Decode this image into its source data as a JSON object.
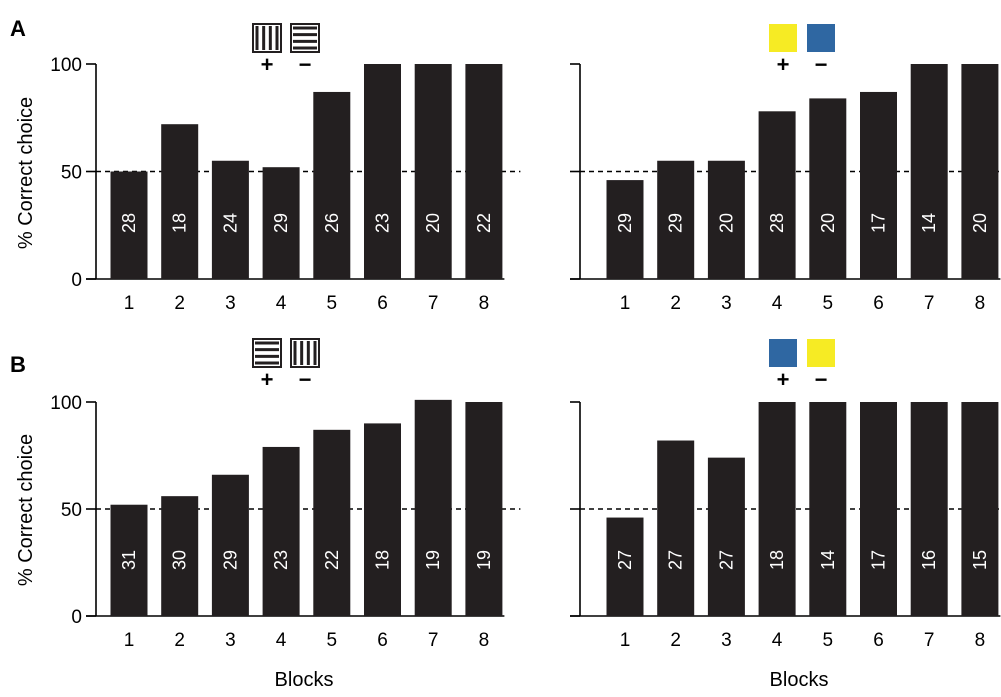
{
  "figure": {
    "panel_labels": [
      "A",
      "B"
    ],
    "x_label": "Blocks",
    "y_label": "% Correct choice"
  },
  "chart_data": [
    {
      "type": "bar",
      "row": "A",
      "categories": [
        "1",
        "2",
        "3",
        "4",
        "5",
        "6",
        "7",
        "8"
      ],
      "values": [
        50,
        72,
        55,
        52,
        87,
        100,
        100,
        100
      ],
      "bar_labels": [
        "28",
        "18",
        "24",
        "29",
        "26",
        "23",
        "20",
        "22"
      ],
      "ylim": [
        0,
        100
      ],
      "yticks": [
        0,
        50,
        100
      ],
      "chance_line": 50,
      "bar_color": "#231f20",
      "stimuli": [
        {
          "sign": "+",
          "kind": "grating-vertical"
        },
        {
          "sign": "−",
          "kind": "grating-horizontal"
        }
      ]
    },
    {
      "type": "bar",
      "row": "A",
      "categories": [
        "1",
        "2",
        "3",
        "4",
        "5",
        "6",
        "7",
        "8"
      ],
      "values": [
        46,
        55,
        55,
        78,
        84,
        87,
        100,
        100
      ],
      "bar_labels": [
        "29",
        "29",
        "20",
        "28",
        "20",
        "17",
        "14",
        "20"
      ],
      "ylim": [
        0,
        100
      ],
      "yticks": [
        0,
        50,
        100
      ],
      "chance_line": 50,
      "bar_color": "#231f20",
      "stimuli": [
        {
          "sign": "+",
          "kind": "color",
          "color": "#f6eb24"
        },
        {
          "sign": "−",
          "kind": "color",
          "color": "#2f67a2"
        }
      ]
    },
    {
      "type": "bar",
      "row": "B",
      "categories": [
        "1",
        "2",
        "3",
        "4",
        "5",
        "6",
        "7",
        "8"
      ],
      "values": [
        52,
        56,
        66,
        79,
        87,
        90,
        101,
        100
      ],
      "bar_labels": [
        "31",
        "30",
        "29",
        "23",
        "22",
        "18",
        "19",
        "19"
      ],
      "ylim": [
        0,
        100
      ],
      "yticks": [
        0,
        50,
        100
      ],
      "chance_line": 50,
      "bar_color": "#231f20",
      "stimuli": [
        {
          "sign": "+",
          "kind": "grating-horizontal"
        },
        {
          "sign": "−",
          "kind": "grating-vertical"
        }
      ]
    },
    {
      "type": "bar",
      "row": "B",
      "categories": [
        "1",
        "2",
        "3",
        "4",
        "5",
        "6",
        "7",
        "8"
      ],
      "values": [
        46,
        82,
        74,
        100,
        100,
        100,
        100,
        100
      ],
      "bar_labels": [
        "27",
        "27",
        "27",
        "18",
        "14",
        "17",
        "16",
        "15"
      ],
      "ylim": [
        0,
        100
      ],
      "yticks": [
        0,
        50,
        100
      ],
      "chance_line": 50,
      "bar_color": "#231f20",
      "stimuli": [
        {
          "sign": "+",
          "kind": "color",
          "color": "#2f67a2"
        },
        {
          "sign": "−",
          "kind": "color",
          "color": "#f6eb24"
        }
      ]
    }
  ]
}
